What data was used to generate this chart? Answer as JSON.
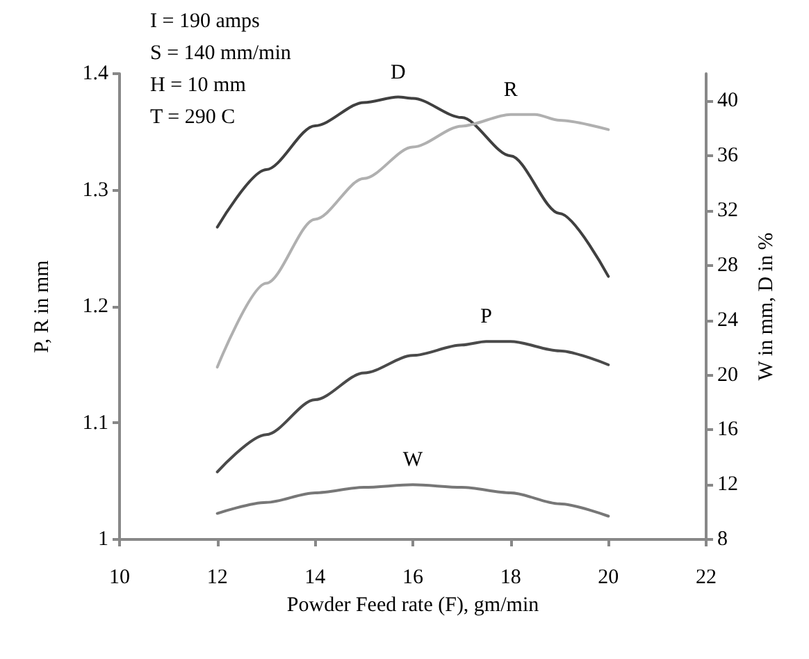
{
  "chart_data": {
    "type": "line",
    "xlabel": "Powder Feed rate (F), gm/min",
    "ylabel": "P, R in mm",
    "y2label": "W in mm, D in %",
    "annotations": [
      "I = 190 amps",
      "S = 140 mm/min",
      "H = 10 mm",
      "T = 290 C"
    ],
    "xlim": [
      10,
      22
    ],
    "xticks": [
      10,
      12,
      14,
      16,
      18,
      20,
      22
    ],
    "ylim": [
      1,
      1.4
    ],
    "yticks": [
      1,
      1.1,
      1.2,
      1.3,
      1.4
    ],
    "y2lim": [
      8,
      42
    ],
    "y2ticks": [
      8,
      12,
      16,
      20,
      24,
      28,
      32,
      36,
      40
    ],
    "grid": false,
    "legend": false,
    "marker": "none",
    "line_style": "solid",
    "series": [
      {
        "name": "D",
        "color": "#404040",
        "axis": "y2",
        "x": [
          12,
          13,
          14,
          15,
          15.7,
          16,
          17,
          18,
          19,
          20
        ],
        "values": [
          30.8,
          35,
          38.2,
          39.9,
          40.3,
          40.2,
          38.8,
          36,
          31.8,
          27.2
        ]
      },
      {
        "name": "R",
        "color": "#b0b0b0",
        "x": [
          12,
          13,
          14,
          15,
          16,
          17,
          18,
          18.5,
          19,
          20
        ],
        "values": [
          1.148,
          1.22,
          1.275,
          1.31,
          1.337,
          1.355,
          1.365,
          1.365,
          1.36,
          1.352
        ]
      },
      {
        "name": "P",
        "color": "#4a4a4a",
        "x": [
          12,
          13,
          14,
          15,
          16,
          17,
          17.5,
          18,
          19,
          20
        ],
        "values": [
          1.058,
          1.09,
          1.12,
          1.143,
          1.158,
          1.167,
          1.17,
          1.17,
          1.162,
          1.15
        ]
      },
      {
        "name": "W",
        "color": "#777777",
        "axis": "y2",
        "x": [
          12,
          13,
          14,
          15,
          16,
          17,
          18,
          19,
          20
        ],
        "values": [
          9.9,
          10.7,
          11.4,
          11.8,
          12,
          11.8,
          11.4,
          10.6,
          9.7
        ]
      }
    ]
  }
}
